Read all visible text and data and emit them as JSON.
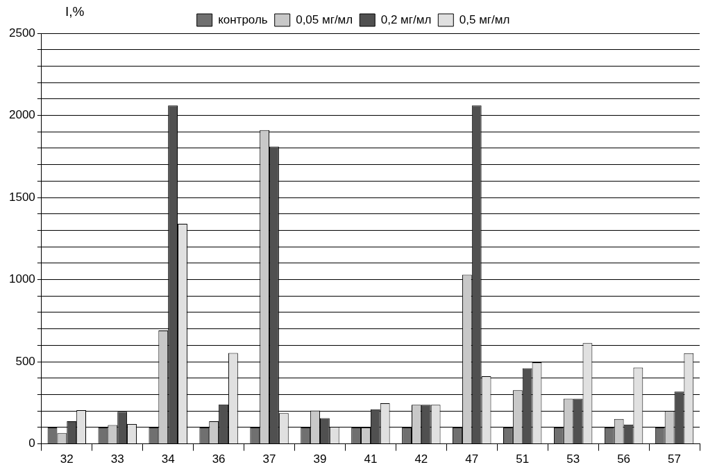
{
  "chart_data": {
    "type": "bar",
    "ylabel": "I,%",
    "categories": [
      "32",
      "33",
      "34",
      "36",
      "37",
      "39",
      "41",
      "42",
      "47",
      "51",
      "53",
      "56",
      "57"
    ],
    "series": [
      {
        "name": "контроль",
        "color": "#707070",
        "values": [
          100,
          100,
          100,
          100,
          100,
          100,
          100,
          100,
          100,
          100,
          100,
          100,
          100
        ]
      },
      {
        "name": "0,05 мг/мл",
        "color": "#c8c8c8",
        "values": [
          65,
          114,
          690,
          138,
          1910,
          203,
          100,
          238,
          1030,
          326,
          275,
          151,
          200
        ]
      },
      {
        "name": "0,2 мг/мл",
        "color": "#505050",
        "values": [
          138,
          196,
          2060,
          240,
          1810,
          156,
          210,
          238,
          2060,
          460,
          275,
          117,
          318
        ]
      },
      {
        "name": "0,5 мг/мл",
        "color": "#e0e0e0",
        "values": [
          205,
          121,
          1340,
          553,
          187,
          104,
          247,
          238,
          412,
          496,
          613,
          465,
          552
        ]
      }
    ],
    "ylim": [
      0,
      2500
    ],
    "yticks": [
      0,
      {
        "value": 100,
        "label": null
      },
      {
        "value": 200,
        "label": null
      },
      {
        "value": 300,
        "label": null
      },
      {
        "value": 400,
        "label": null
      },
      500,
      {
        "value": 600,
        "label": null
      },
      {
        "value": 700,
        "label": null
      },
      {
        "value": 800,
        "label": null
      },
      {
        "value": 900,
        "label": null
      },
      1000,
      {
        "value": 1100,
        "label": null
      },
      {
        "value": 1200,
        "label": null
      },
      {
        "value": 1300,
        "label": null
      },
      {
        "value": 1400,
        "label": null
      },
      1500,
      {
        "value": 1600,
        "label": null
      },
      {
        "value": 1700,
        "label": null
      },
      {
        "value": 1800,
        "label": null
      },
      {
        "value": 1900,
        "label": null
      },
      2000,
      {
        "value": 2100,
        "label": null
      },
      {
        "value": 2200,
        "label": null
      },
      {
        "value": 2300,
        "label": null
      },
      {
        "value": 2400,
        "label": null
      },
      2500
    ],
    "grid": "y",
    "legend": "top"
  }
}
